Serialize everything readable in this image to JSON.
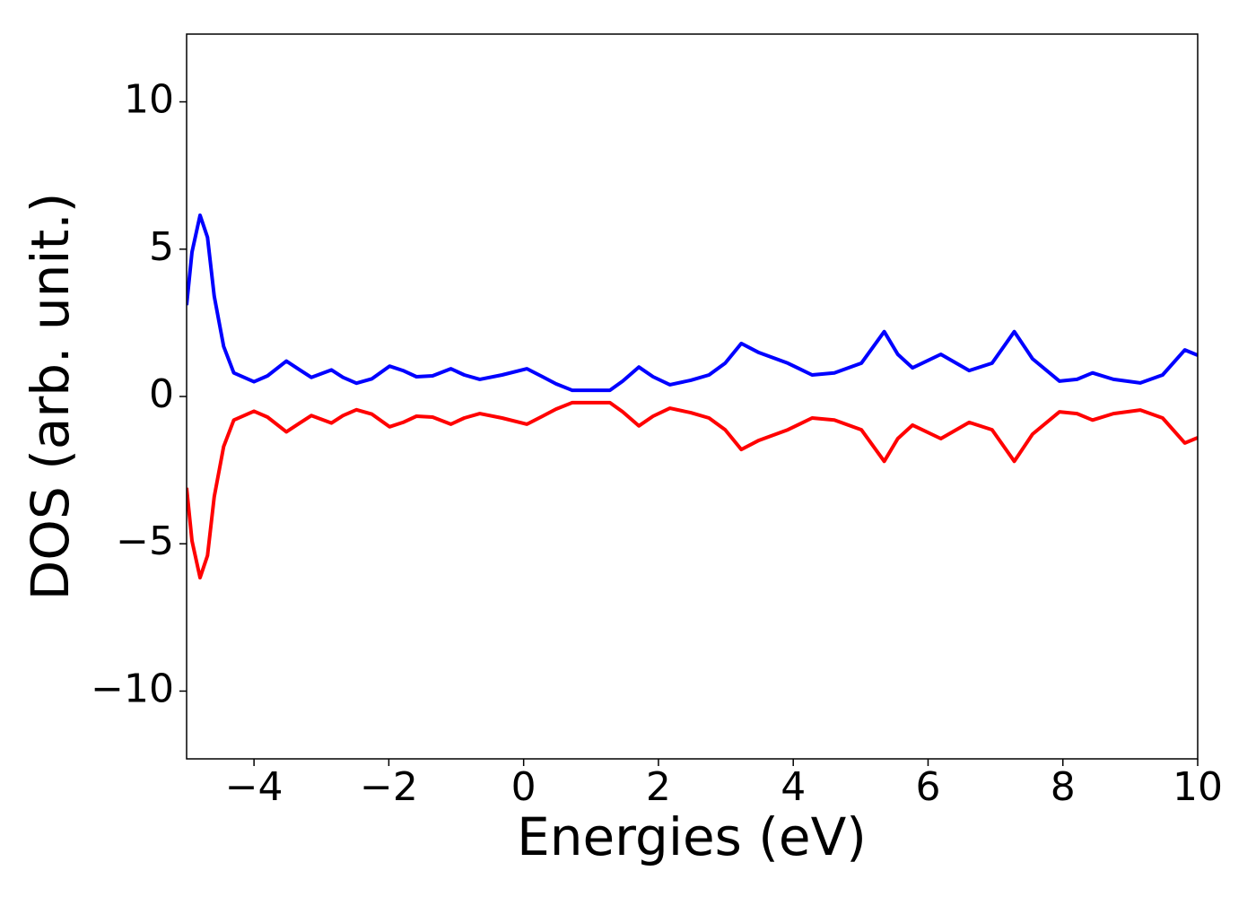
{
  "chart_data": {
    "type": "line",
    "xlabel": "Energies (eV)",
    "ylabel": "DOS (arb. unit.)",
    "x": [
      -5,
      -4.92,
      -4.8,
      -4.69,
      -4.59,
      -4.45,
      -4.3,
      -4,
      -3.8,
      -3.52,
      -3.32,
      -3.15,
      -2.85,
      -2.68,
      -2.48,
      -2.25,
      -1.99,
      -1.79,
      -1.59,
      -1.35,
      -1.08,
      -0.88,
      -0.65,
      -0.32,
      0.05,
      0.28,
      0.48,
      0.72,
      1.28,
      1.47,
      1.71,
      1.92,
      2.17,
      2.48,
      2.75,
      2.99,
      3.23,
      3.48,
      3.92,
      4.28,
      4.61,
      5.01,
      5.35,
      5.55,
      5.77,
      6.19,
      6.61,
      6.95,
      7.28,
      7.55,
      7.95,
      8.21,
      8.44,
      8.75,
      9.15,
      9.48,
      9.81,
      10
    ],
    "series": [
      {
        "color": "#0000ff",
        "values": [
          3.1,
          4.9,
          6.15,
          5.4,
          3.4,
          1.7,
          0.8,
          0.5,
          0.7,
          1.2,
          0.9,
          0.65,
          0.9,
          0.65,
          0.45,
          0.6,
          1.03,
          0.88,
          0.67,
          0.7,
          0.94,
          0.73,
          0.58,
          0.73,
          0.94,
          0.67,
          0.43,
          0.21,
          0.21,
          0.52,
          1.0,
          0.67,
          0.4,
          0.55,
          0.73,
          1.13,
          1.8,
          1.5,
          1.13,
          0.73,
          0.8,
          1.13,
          2.2,
          1.43,
          0.97,
          1.43,
          0.88,
          1.13,
          2.2,
          1.28,
          0.52,
          0.58,
          0.8,
          0.58,
          0.46,
          0.73,
          1.58,
          1.4
        ]
      },
      {
        "color": "#ff0000",
        "values": [
          -3.1,
          -4.9,
          -6.15,
          -5.4,
          -3.4,
          -1.7,
          -0.8,
          -0.5,
          -0.7,
          -1.2,
          -0.9,
          -0.65,
          -0.9,
          -0.65,
          -0.45,
          -0.6,
          -1.03,
          -0.88,
          -0.67,
          -0.7,
          -0.94,
          -0.73,
          -0.58,
          -0.73,
          -0.94,
          -0.67,
          -0.43,
          -0.21,
          -0.21,
          -0.52,
          -1.0,
          -0.67,
          -0.4,
          -0.55,
          -0.73,
          -1.13,
          -1.8,
          -1.5,
          -1.13,
          -0.73,
          -0.8,
          -1.13,
          -2.2,
          -1.43,
          -0.97,
          -1.43,
          -0.88,
          -1.13,
          -2.2,
          -1.28,
          -0.52,
          -0.58,
          -0.8,
          -0.58,
          -0.46,
          -0.73,
          -1.58,
          -1.4
        ]
      }
    ],
    "xlim": [
      -5,
      10
    ],
    "xticks": [
      {
        "value": -4,
        "label": "−4"
      },
      {
        "value": -2,
        "label": "−2"
      },
      0,
      2,
      4,
      6,
      8,
      10
    ],
    "ylim": [
      -12.3,
      12.3
    ],
    "yticks": [
      {
        "value": -10,
        "label": "−10"
      },
      {
        "value": -5,
        "label": "−5"
      },
      0,
      5,
      10
    ],
    "grid": false
  }
}
